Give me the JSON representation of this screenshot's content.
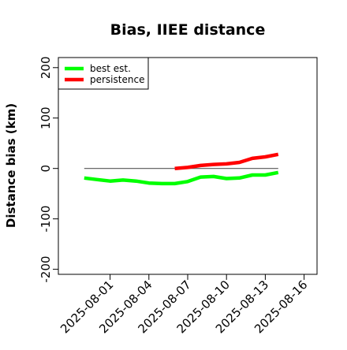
{
  "chart_data": {
    "type": "line",
    "title": "Bias, IIEE distance",
    "xlabel": "",
    "ylabel": "Distance bias (km)",
    "ylim": [
      -210,
      220
    ],
    "xlim": [
      "2025-07-28",
      "2025-08-17"
    ],
    "x_ticks": [
      "2025-08-01",
      "2025-08-04",
      "2025-08-07",
      "2025-08-10",
      "2025-08-13",
      "2025-08-16"
    ],
    "y_ticks": [
      -200,
      -100,
      0,
      100,
      200
    ],
    "y_tick_labels": [
      "-200",
      "-100",
      "0",
      "100",
      "200"
    ],
    "grid": false,
    "legend_position": "top-left",
    "reference_line": {
      "y": 0,
      "color": "#555555"
    },
    "series": [
      {
        "name": "best est.",
        "color": "#00ff00",
        "x": [
          "2025-07-30",
          "2025-07-31",
          "2025-08-01",
          "2025-08-02",
          "2025-08-03",
          "2025-08-04",
          "2025-08-05",
          "2025-08-06",
          "2025-08-07",
          "2025-08-08",
          "2025-08-09",
          "2025-08-10",
          "2025-08-11",
          "2025-08-12",
          "2025-08-13",
          "2025-08-14"
        ],
        "values": [
          -19,
          -22,
          -25,
          -23,
          -25,
          -29,
          -30,
          -30,
          -26,
          -17,
          -16,
          -20,
          -19,
          -13,
          -13,
          -8
        ]
      },
      {
        "name": "persistence",
        "color": "#ff0000",
        "x": [
          "2025-08-06",
          "2025-08-07",
          "2025-08-08",
          "2025-08-09",
          "2025-08-10",
          "2025-08-11",
          "2025-08-12",
          "2025-08-13",
          "2025-08-14"
        ],
        "values": [
          0,
          2,
          6,
          8,
          9,
          12,
          20,
          23,
          28
        ]
      }
    ]
  }
}
